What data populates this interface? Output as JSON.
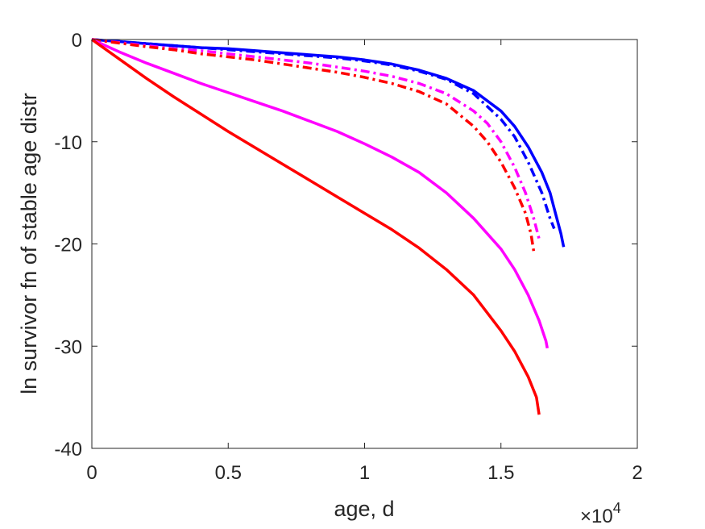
{
  "chart_data": {
    "type": "line",
    "title": "",
    "xlabel": "age, d",
    "ylabel": "ln survivor fn of stable age distr",
    "x_multiplier_label": "×10",
    "x_multiplier_exponent": "4",
    "xlim": [
      0,
      20000
    ],
    "ylim": [
      -40,
      0
    ],
    "x_ticks": [
      0,
      5000,
      10000,
      15000,
      20000
    ],
    "x_tick_labels": [
      "0",
      "0.5",
      "1",
      "1.5",
      "2"
    ],
    "y_ticks": [
      0,
      -10,
      -20,
      -30,
      -40
    ],
    "y_tick_labels": [
      "0",
      "-10",
      "-20",
      "-30",
      "-40"
    ],
    "grid": false,
    "series": [
      {
        "color": "#0000ff",
        "style": "solid",
        "points": [
          [
            0,
            0
          ],
          [
            1000,
            -0.2
          ],
          [
            2000,
            -0.4
          ],
          [
            3000,
            -0.6
          ],
          [
            4000,
            -0.8
          ],
          [
            5000,
            -0.9
          ],
          [
            6000,
            -1.1
          ],
          [
            7000,
            -1.3
          ],
          [
            8000,
            -1.5
          ],
          [
            9000,
            -1.7
          ],
          [
            10000,
            -2.0
          ],
          [
            11000,
            -2.4
          ],
          [
            12000,
            -3.0
          ],
          [
            13000,
            -3.8
          ],
          [
            14000,
            -5.0
          ],
          [
            15000,
            -7.0
          ],
          [
            15500,
            -8.5
          ],
          [
            16000,
            -10.5
          ],
          [
            16500,
            -13.0
          ],
          [
            16800,
            -15.0
          ],
          [
            17000,
            -17.0
          ],
          [
            17200,
            -19.0
          ],
          [
            17300,
            -20.3
          ]
        ]
      },
      {
        "color": "#0000ff",
        "style": "dashdot",
        "points": [
          [
            0,
            0
          ],
          [
            1000,
            -0.2
          ],
          [
            2000,
            -0.4
          ],
          [
            3000,
            -0.6
          ],
          [
            4000,
            -0.8
          ],
          [
            5000,
            -1.0
          ],
          [
            6000,
            -1.2
          ],
          [
            7000,
            -1.4
          ],
          [
            8000,
            -1.6
          ],
          [
            9000,
            -1.8
          ],
          [
            10000,
            -2.1
          ],
          [
            11000,
            -2.5
          ],
          [
            12000,
            -3.1
          ],
          [
            13000,
            -3.9
          ],
          [
            14000,
            -5.3
          ],
          [
            15000,
            -7.8
          ],
          [
            15500,
            -9.5
          ],
          [
            16000,
            -12.0
          ],
          [
            16500,
            -15.0
          ],
          [
            16800,
            -17.5
          ],
          [
            16950,
            -18.5
          ]
        ]
      },
      {
        "color": "#ff00ff",
        "style": "dashdot",
        "points": [
          [
            0,
            0
          ],
          [
            1000,
            -0.3
          ],
          [
            2000,
            -0.6
          ],
          [
            3000,
            -0.9
          ],
          [
            4000,
            -1.1
          ],
          [
            5000,
            -1.4
          ],
          [
            6000,
            -1.7
          ],
          [
            7000,
            -2.0
          ],
          [
            8000,
            -2.3
          ],
          [
            9000,
            -2.7
          ],
          [
            10000,
            -3.1
          ],
          [
            11000,
            -3.6
          ],
          [
            12000,
            -4.3
          ],
          [
            13000,
            -5.3
          ],
          [
            14000,
            -7.0
          ],
          [
            14500,
            -8.2
          ],
          [
            15000,
            -10.0
          ],
          [
            15500,
            -12.5
          ],
          [
            15900,
            -15.0
          ],
          [
            16200,
            -17.5
          ],
          [
            16400,
            -19.5
          ]
        ]
      },
      {
        "color": "#ff0000",
        "style": "dashdot",
        "points": [
          [
            0,
            0
          ],
          [
            1000,
            -0.35
          ],
          [
            2000,
            -0.7
          ],
          [
            3000,
            -1.0
          ],
          [
            4000,
            -1.4
          ],
          [
            5000,
            -1.7
          ],
          [
            6000,
            -2.0
          ],
          [
            7000,
            -2.4
          ],
          [
            8000,
            -2.8
          ],
          [
            9000,
            -3.2
          ],
          [
            10000,
            -3.7
          ],
          [
            11000,
            -4.3
          ],
          [
            12000,
            -5.1
          ],
          [
            13000,
            -6.3
          ],
          [
            14000,
            -8.5
          ],
          [
            14500,
            -10.0
          ],
          [
            15000,
            -12.0
          ],
          [
            15500,
            -14.5
          ],
          [
            15900,
            -17.0
          ],
          [
            16100,
            -19.0
          ],
          [
            16200,
            -20.7
          ]
        ]
      },
      {
        "color": "#ff00ff",
        "style": "solid",
        "points": [
          [
            0,
            0
          ],
          [
            1000,
            -1.2
          ],
          [
            2000,
            -2.3
          ],
          [
            3000,
            -3.3
          ],
          [
            4000,
            -4.3
          ],
          [
            5000,
            -5.2
          ],
          [
            6000,
            -6.1
          ],
          [
            7000,
            -7.0
          ],
          [
            8000,
            -8.0
          ],
          [
            9000,
            -9.0
          ],
          [
            10000,
            -10.2
          ],
          [
            11000,
            -11.5
          ],
          [
            12000,
            -13.0
          ],
          [
            13000,
            -15.0
          ],
          [
            14000,
            -17.5
          ],
          [
            15000,
            -20.5
          ],
          [
            15500,
            -22.5
          ],
          [
            16000,
            -25.0
          ],
          [
            16400,
            -27.5
          ],
          [
            16650,
            -29.5
          ],
          [
            16700,
            -30.2
          ]
        ]
      },
      {
        "color": "#ff0000",
        "style": "solid",
        "points": [
          [
            0,
            0
          ],
          [
            1000,
            -1.9
          ],
          [
            2000,
            -3.8
          ],
          [
            3000,
            -5.6
          ],
          [
            4000,
            -7.3
          ],
          [
            5000,
            -9.0
          ],
          [
            6000,
            -10.6
          ],
          [
            7000,
            -12.2
          ],
          [
            8000,
            -13.8
          ],
          [
            9000,
            -15.4
          ],
          [
            10000,
            -17.0
          ],
          [
            11000,
            -18.6
          ],
          [
            12000,
            -20.4
          ],
          [
            13000,
            -22.5
          ],
          [
            14000,
            -25.0
          ],
          [
            15000,
            -28.5
          ],
          [
            15500,
            -30.5
          ],
          [
            16000,
            -33.0
          ],
          [
            16300,
            -35.0
          ],
          [
            16400,
            -36.7
          ]
        ]
      }
    ]
  }
}
